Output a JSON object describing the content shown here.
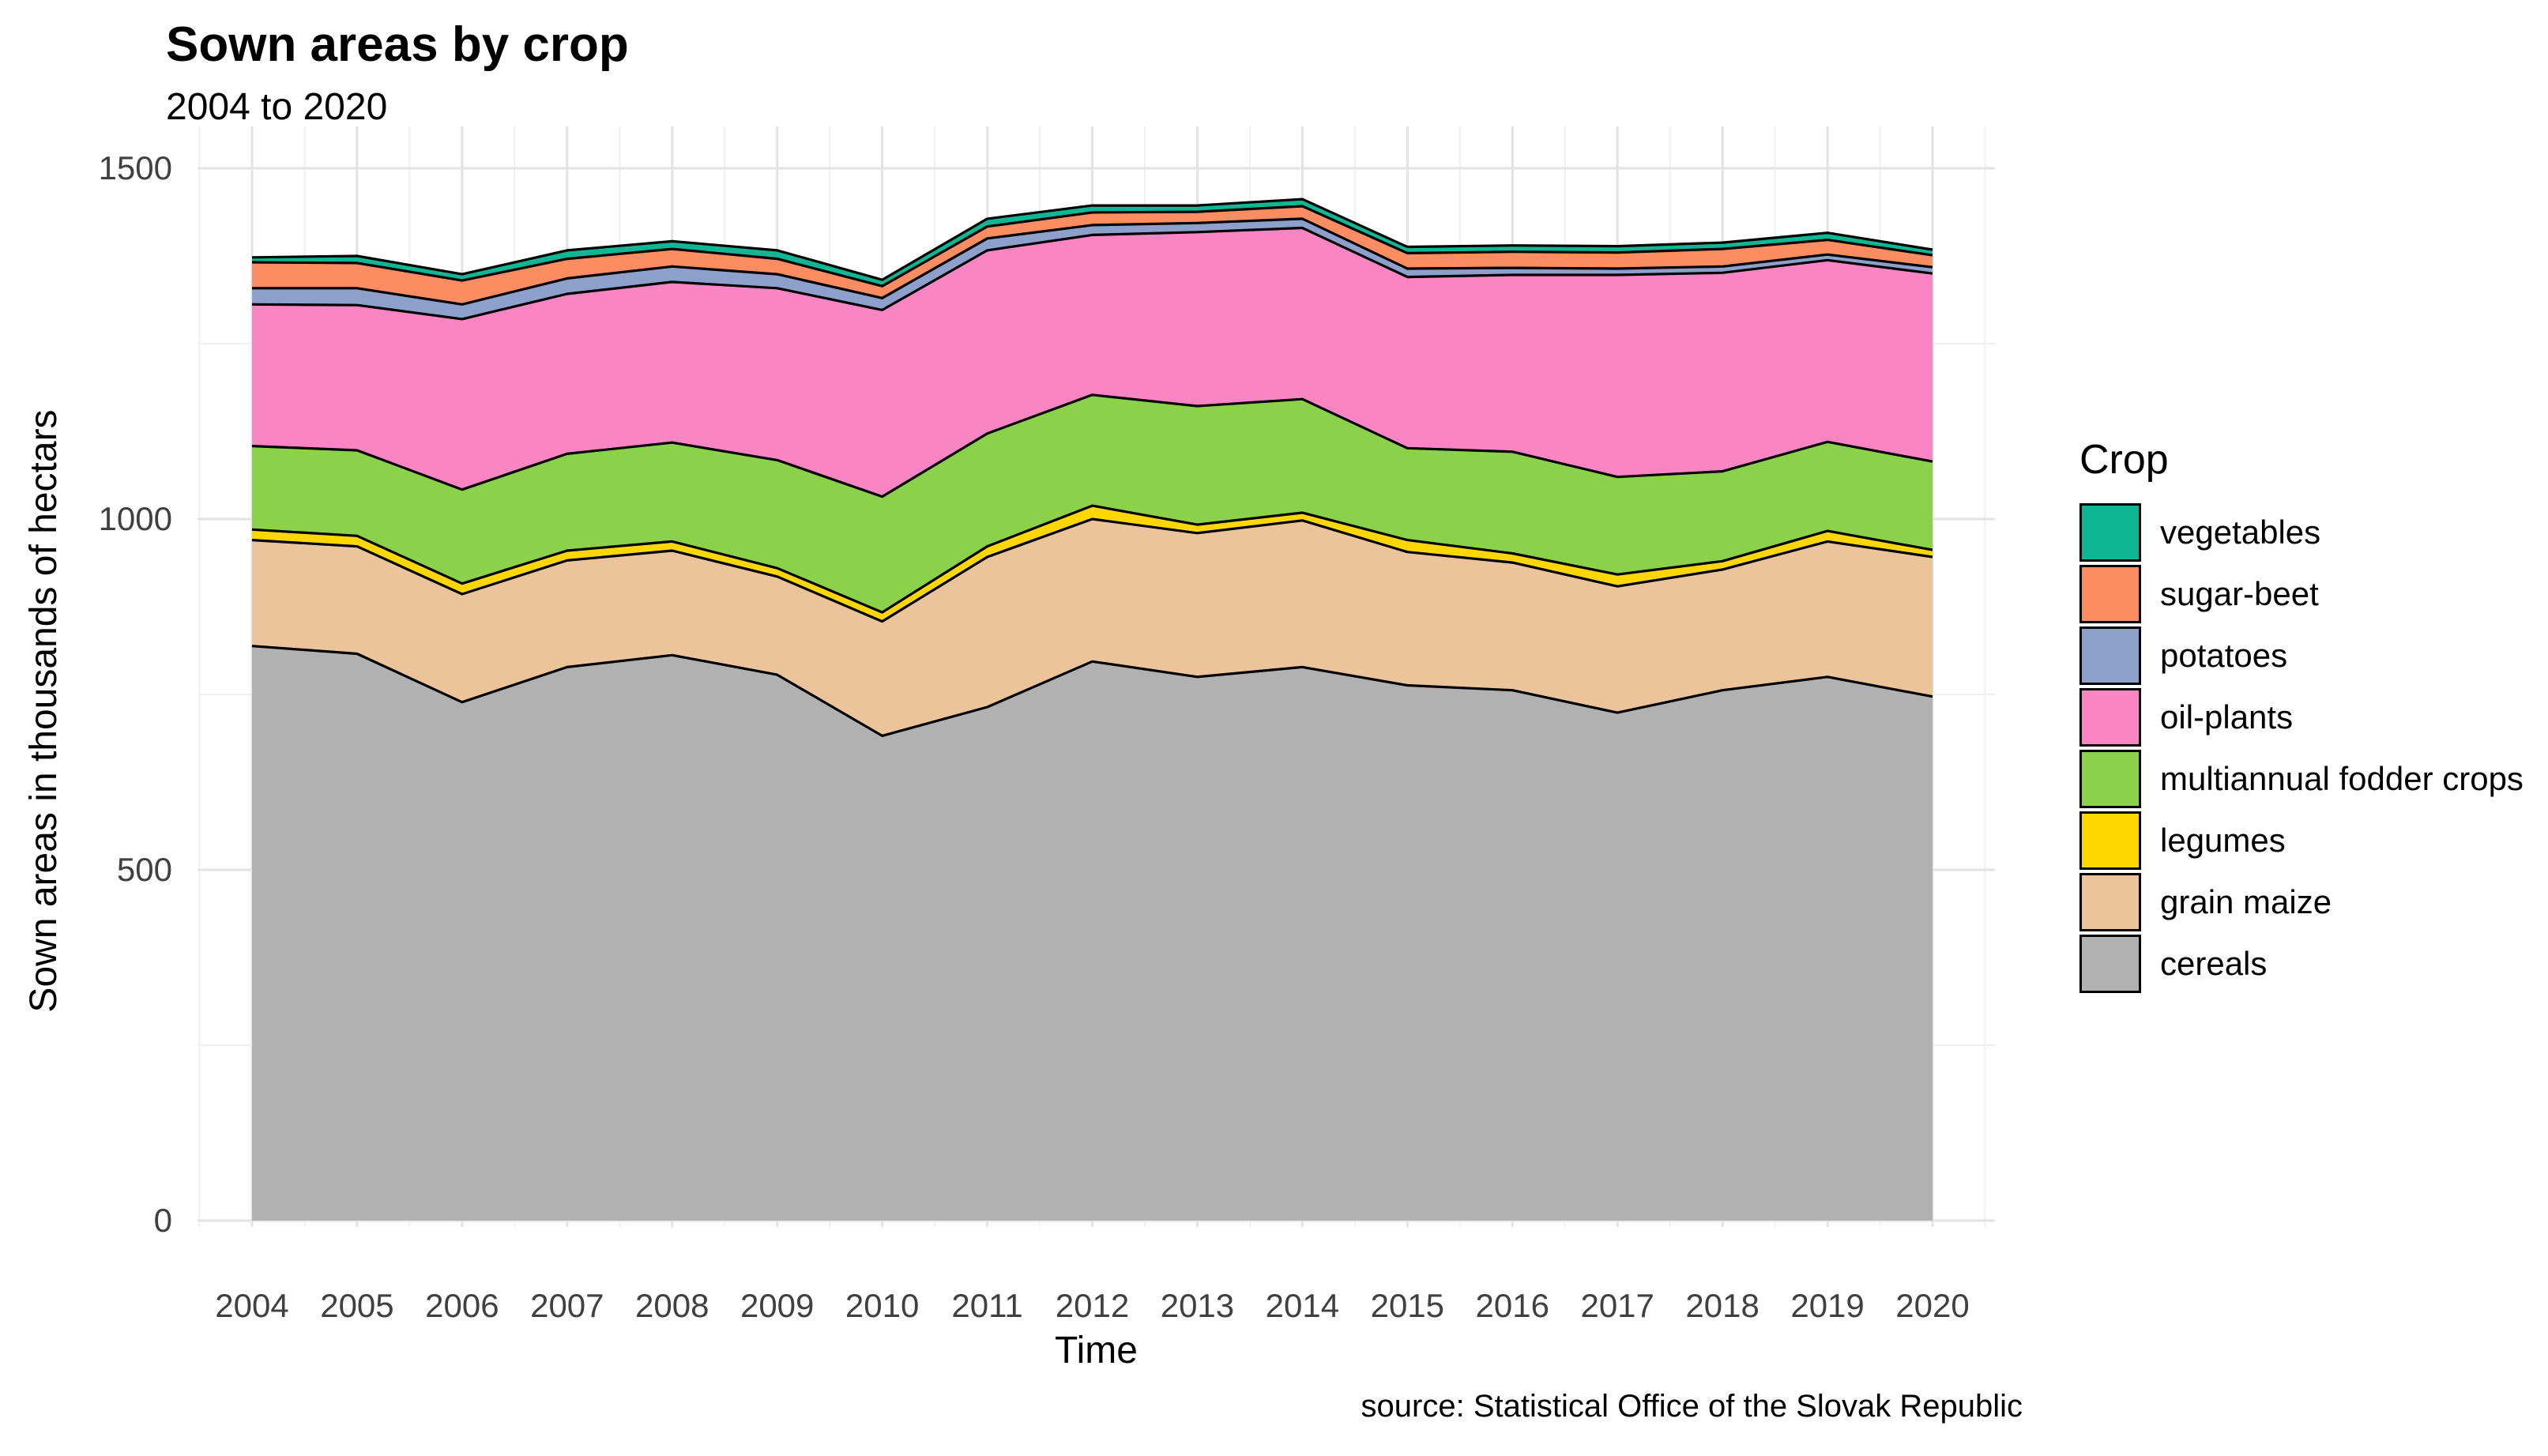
{
  "title": "Sown areas by crop",
  "subtitle": "2004 to 2020",
  "caption": "source: Statistical Office of the Slovak Republic",
  "x_axis": {
    "label": "Time",
    "ticks": [
      "2004",
      "2005",
      "2006",
      "2007",
      "2008",
      "2009",
      "2010",
      "2011",
      "2012",
      "2013",
      "2014",
      "2015",
      "2016",
      "2017",
      "2018",
      "2019",
      "2020"
    ]
  },
  "y_axis": {
    "label": "Sown areas in thousands of hectars",
    "ticks": [
      "0",
      "500",
      "1000",
      "1500"
    ],
    "tick_values": [
      0,
      500,
      1000,
      1500
    ],
    "minor_tick_values": [
      250,
      750,
      1250
    ]
  },
  "legend": {
    "title": "Crop"
  },
  "colors": {
    "background": "#FFFFFF",
    "major_grid": "#E3E3E3",
    "minor_grid": "#F0F0F0",
    "area_outline": "#000000",
    "axis_text": "#404040"
  },
  "chart_data": {
    "type": "area",
    "stacked": true,
    "title": "Sown areas by crop",
    "subtitle": "2004 to 2020",
    "xlabel": "Time",
    "ylabel": "Sown areas in thousands of hectars",
    "ylim": [
      0,
      1560
    ],
    "grid": true,
    "legend_position": "right",
    "x": [
      2004,
      2005,
      2006,
      2007,
      2008,
      2009,
      2010,
      2011,
      2012,
      2013,
      2014,
      2015,
      2016,
      2017,
      2018,
      2019,
      2020
    ],
    "series": [
      {
        "name": "cereals",
        "color": "#B1B1B1",
        "values": [
          819,
          808,
          739,
          789,
          806,
          778,
          691,
          732,
          797,
          775,
          789,
          763,
          756,
          724,
          756,
          775,
          747
        ]
      },
      {
        "name": "grain maize",
        "color": "#EBC49B",
        "values": [
          151,
          153,
          154,
          152,
          149,
          140,
          163,
          214,
          203,
          205,
          209,
          190,
          182,
          180,
          172,
          193,
          199
        ]
      },
      {
        "name": "legumes",
        "color": "#FFD700",
        "values": [
          15,
          15,
          15,
          14,
          13,
          12,
          13,
          15,
          19,
          12,
          11,
          17,
          13,
          17,
          12,
          15,
          10
        ]
      },
      {
        "name": "multiannual fodder crops",
        "color": "#8BD24A",
        "values": [
          119,
          122,
          134,
          138,
          141,
          154,
          165,
          161,
          158,
          169,
          162,
          131,
          145,
          139,
          128,
          127,
          126
        ]
      },
      {
        "name": "oil-plants",
        "color": "#FA85C4",
        "values": [
          202,
          207,
          243,
          228,
          229,
          245,
          266,
          261,
          228,
          248,
          244,
          244,
          252,
          288,
          283,
          259,
          268
        ]
      },
      {
        "name": "potatoes",
        "color": "#8DA0CB",
        "values": [
          23,
          24,
          21,
          22,
          22,
          20,
          17,
          17,
          14,
          13,
          13,
          12,
          10,
          9,
          9,
          8,
          9
        ]
      },
      {
        "name": "sugar-beet",
        "color": "#FC8D62",
        "values": [
          37,
          36,
          34,
          28,
          25,
          22,
          17,
          17,
          18,
          16,
          18,
          22,
          23,
          23,
          25,
          21,
          17
        ]
      },
      {
        "name": "vegetables",
        "color": "#0DB793",
        "values": [
          7,
          10,
          9,
          12,
          11,
          12,
          9,
          11,
          10,
          9,
          10,
          9,
          9,
          9,
          9,
          10,
          8
        ]
      }
    ],
    "legend_order": [
      "vegetables",
      "sugar-beet",
      "potatoes",
      "oil-plants",
      "multiannual fodder crops",
      "legumes",
      "grain maize",
      "cereals"
    ]
  }
}
